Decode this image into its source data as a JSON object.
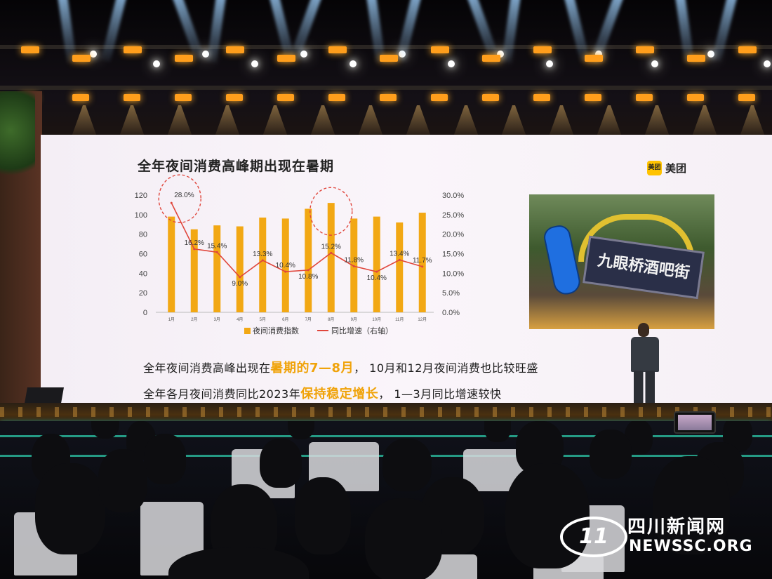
{
  "slide": {
    "title": "全年夜间消费高峰期出现在暑期",
    "logo_badge": "美团",
    "logo_text": "美团",
    "photo_sign_text": "九眼桥酒吧街"
  },
  "captions": [
    {
      "pre": "全年夜间消费高峰出现在",
      "highlight": "暑期的7—8月",
      "post": "，  10月和12月夜间消费也比较旺盛"
    },
    {
      "pre": "全年各月夜间消费同比2023年",
      "highlight": "保持稳定增长",
      "post": "，  1—3月同比增速较快"
    }
  ],
  "watermark": {
    "cn": "四川新闻网",
    "en": "NEWSSC.ORG",
    "icon_text": "11"
  },
  "colors": {
    "bar": "#f2a814",
    "line": "#e0463c",
    "screen_bg": "#f7f2f7",
    "accent": "#f0a30a"
  },
  "chart_data": {
    "type": "bar",
    "title": "全年夜间消费高峰期出现在暑期",
    "categories": [
      "1月",
      "2月",
      "3月",
      "4月",
      "5月",
      "6月",
      "7月",
      "8月",
      "9月",
      "10月",
      "11月",
      "12月"
    ],
    "series": [
      {
        "name": "夜间消费指数",
        "type": "bar",
        "axis": "left",
        "values": [
          98,
          85,
          89,
          88,
          97,
          96,
          106,
          112,
          96,
          98,
          92,
          102
        ]
      },
      {
        "name": "同比增速（右轴）",
        "type": "line",
        "axis": "right",
        "values": [
          28.0,
          16.2,
          15.4,
          9.0,
          13.3,
          10.4,
          10.8,
          15.2,
          11.8,
          10.4,
          13.4,
          11.7
        ],
        "labels": [
          "28.0%",
          "16.2%",
          "15.4%",
          "9.0%",
          "13.3%",
          "10.4%",
          "10.8%",
          "15.2%",
          "11.8%",
          "10.4%",
          "13.4%",
          "11.7%"
        ]
      }
    ],
    "y_left": {
      "ticks": [
        "0",
        "20",
        "40",
        "60",
        "80",
        "100",
        "120"
      ],
      "ylim": [
        0,
        120
      ]
    },
    "y_right": {
      "ticks": [
        "0.0%",
        "5.0%",
        "10.0%",
        "15.0%",
        "20.0%",
        "25.0%",
        "30.0%"
      ],
      "ylim": [
        0,
        30
      ]
    },
    "highlight_circles": [
      "1月",
      "8月"
    ],
    "legend_position": "bottom-center",
    "grid": false
  }
}
